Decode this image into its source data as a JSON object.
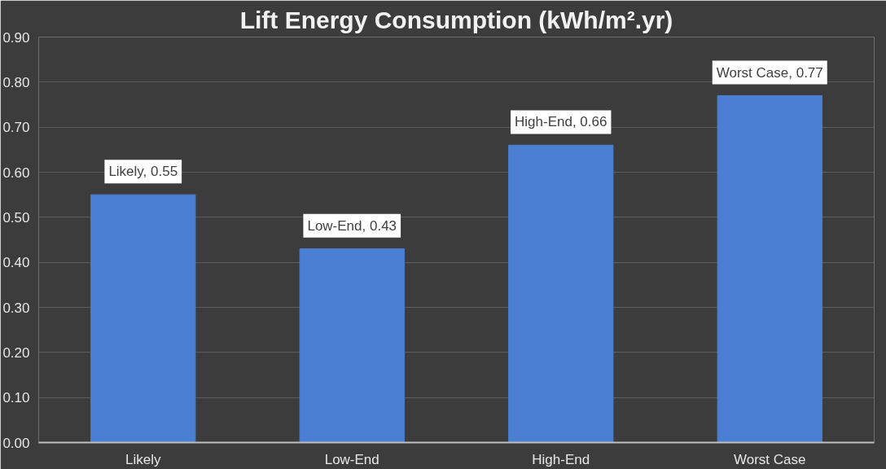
{
  "chart_data": {
    "type": "bar",
    "title": "Lift Energy Consumption (kWh/m².yr)",
    "categories": [
      "Likely",
      "Low-End",
      "High-End",
      "Worst Case"
    ],
    "values": [
      0.55,
      0.43,
      0.66,
      0.77
    ],
    "color": "#4a7fd4",
    "value_labels": [
      "Likely, 0.55",
      "Low-End, 0.43",
      "High-End, 0.66",
      "Worst Case, 0.77"
    ],
    "ylim": [
      0,
      0.9
    ],
    "yticks": [
      {
        "value": 0,
        "label": "0.00"
      },
      {
        "value": 0.1,
        "label": "0.10"
      },
      {
        "value": 0.2,
        "label": "0.20"
      },
      {
        "value": 0.3,
        "label": "0.30"
      },
      {
        "value": 0.4,
        "label": "0.40"
      },
      {
        "value": 0.5,
        "label": "0.50"
      },
      {
        "value": 0.6,
        "label": "0.60"
      },
      {
        "value": 0.7,
        "label": "0.70"
      },
      {
        "value": 0.8,
        "label": "0.80"
      },
      {
        "value": 0.9,
        "label": "0.90"
      }
    ],
    "grid": "y"
  }
}
